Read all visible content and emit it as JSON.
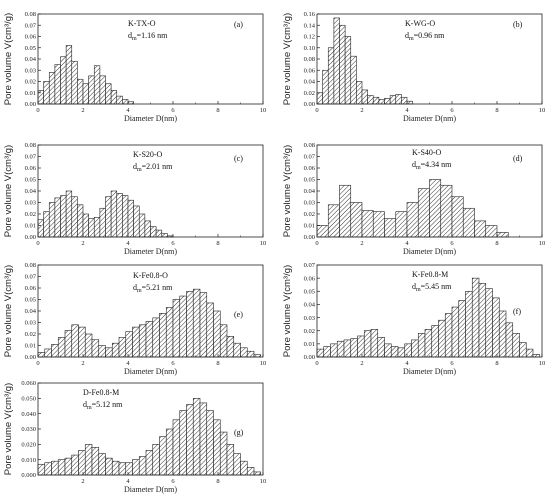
{
  "figure": {
    "common_xlabel": "Diameter D(nm)",
    "common_ylabel": "Pore volume V(cm³/g)"
  },
  "chart_data": [
    {
      "type": "bar",
      "id": "a",
      "panel_label": "(a)",
      "sample": "K-TX-O",
      "dm_label": "d",
      "dm_sub": "m",
      "dm_value": "=1.16 nm",
      "xlabel": "Diameter D(nm)",
      "ylabel": "Pore volume V(cm³/g)",
      "xlim": [
        0,
        10
      ],
      "ylim": [
        0,
        0.08
      ],
      "xticks": [
        0,
        2,
        4,
        6,
        8,
        10
      ],
      "yticks": [
        "0.00",
        "0.01",
        "0.02",
        "0.03",
        "0.04",
        "0.05",
        "0.06",
        "0.07",
        "0.08"
      ],
      "bin_width": 0.25,
      "x": [
        0.125,
        0.375,
        0.625,
        0.875,
        1.125,
        1.375,
        1.625,
        1.875,
        2.125,
        2.375,
        2.625,
        2.875,
        3.125,
        3.375,
        3.625,
        3.875,
        4.125
      ],
      "values": [
        0.012,
        0.02,
        0.028,
        0.035,
        0.042,
        0.052,
        0.038,
        0.022,
        0.018,
        0.025,
        0.034,
        0.025,
        0.018,
        0.012,
        0.007,
        0.004,
        0.002
      ]
    },
    {
      "type": "bar",
      "id": "b",
      "panel_label": "(b)",
      "sample": "K-WG-O",
      "dm_label": "d",
      "dm_sub": "m",
      "dm_value": "=0.96 nm",
      "xlabel": "Diameter D(nm)",
      "ylabel": "Pore volume V(cm³/g)",
      "xlim": [
        0,
        10
      ],
      "ylim": [
        0,
        0.16
      ],
      "xticks": [
        0,
        2,
        4,
        6,
        8,
        10
      ],
      "yticks": [
        "0.00",
        "0.02",
        "0.04",
        "0.06",
        "0.08",
        "0.10",
        "0.12",
        "0.14",
        "0.16"
      ],
      "bin_width": 0.25,
      "x": [
        0.125,
        0.375,
        0.625,
        0.875,
        1.125,
        1.375,
        1.625,
        1.875,
        2.125,
        2.375,
        2.625,
        2.875,
        3.125,
        3.375,
        3.625,
        3.875,
        4.125
      ],
      "values": [
        0.02,
        0.06,
        0.1,
        0.153,
        0.14,
        0.12,
        0.085,
        0.04,
        0.025,
        0.015,
        0.012,
        0.008,
        0.01,
        0.015,
        0.017,
        0.012,
        0.005
      ]
    },
    {
      "type": "bar",
      "id": "c",
      "panel_label": "(c)",
      "sample": "K-S20-O",
      "dm_label": "d",
      "dm_sub": "m",
      "dm_value": "=2.01 nm",
      "xlabel": "Diameter D(nm)",
      "ylabel": "Pore volume V(cm³/g)",
      "xlim": [
        0,
        10
      ],
      "ylim": [
        0,
        0.08
      ],
      "xticks": [
        0,
        2,
        4,
        6,
        8,
        10
      ],
      "yticks": [
        "0.00",
        "0.01",
        "0.02",
        "0.03",
        "0.04",
        "0.05",
        "0.06",
        "0.07",
        "0.08"
      ],
      "bin_width": 0.25,
      "x": [
        0.125,
        0.375,
        0.625,
        0.875,
        1.125,
        1.375,
        1.625,
        1.875,
        2.125,
        2.375,
        2.625,
        2.875,
        3.125,
        3.375,
        3.625,
        3.875,
        4.125,
        4.375,
        4.625,
        4.875,
        5.125,
        5.375,
        5.625,
        5.875
      ],
      "values": [
        0.015,
        0.022,
        0.03,
        0.034,
        0.036,
        0.04,
        0.035,
        0.028,
        0.02,
        0.016,
        0.017,
        0.025,
        0.035,
        0.04,
        0.038,
        0.036,
        0.032,
        0.027,
        0.02,
        0.014,
        0.009,
        0.006,
        0.003,
        0.001
      ]
    },
    {
      "type": "bar",
      "id": "d",
      "panel_label": "(d)",
      "sample": "K-S40-O",
      "dm_label": "d",
      "dm_sub": "m",
      "dm_value": "=4.34 nm",
      "xlabel": "Diameter D(nm)",
      "ylabel": "Pore volume V(cm³/g)",
      "xlim": [
        0,
        10
      ],
      "ylim": [
        0,
        0.08
      ],
      "xticks": [
        0,
        2,
        4,
        6,
        8,
        10
      ],
      "yticks": [
        "0.00",
        "0.01",
        "0.02",
        "0.03",
        "0.04",
        "0.05",
        "0.06",
        "0.07",
        "0.08"
      ],
      "bin_width": 0.5,
      "x": [
        0.25,
        0.75,
        1.25,
        1.75,
        2.25,
        2.75,
        3.25,
        3.75,
        4.25,
        4.75,
        5.25,
        5.75,
        6.25,
        6.75,
        7.25,
        7.75,
        8.25
      ],
      "values": [
        0.01,
        0.028,
        0.045,
        0.03,
        0.023,
        0.022,
        0.016,
        0.022,
        0.03,
        0.042,
        0.05,
        0.045,
        0.035,
        0.025,
        0.014,
        0.01,
        0.004
      ]
    },
    {
      "type": "bar",
      "id": "e",
      "panel_label": "(e)",
      "sample": "K-Fe0.8-O",
      "dm_label": "d",
      "dm_sub": "m",
      "dm_value": "=5.21 nm",
      "xlabel": "Diameter D(nm)",
      "ylabel": "Pore volume V(cm³/g)",
      "xlim": [
        0,
        10
      ],
      "ylim": [
        0,
        0.08
      ],
      "xticks": [
        0,
        2,
        4,
        6,
        8,
        10
      ],
      "yticks": [
        "0.00",
        "0.01",
        "0.02",
        "0.03",
        "0.04",
        "0.05",
        "0.06",
        "0.07",
        "0.08"
      ],
      "bin_width": 0.3,
      "x": [
        0.15,
        0.45,
        0.75,
        1.05,
        1.35,
        1.65,
        1.95,
        2.25,
        2.55,
        2.85,
        3.15,
        3.45,
        3.75,
        4.05,
        4.35,
        4.65,
        4.95,
        5.25,
        5.55,
        5.85,
        6.15,
        6.45,
        6.75,
        7.05,
        7.35,
        7.65,
        7.95,
        8.25,
        8.55,
        8.85,
        9.15,
        9.45,
        9.75
      ],
      "values": [
        0.004,
        0.007,
        0.011,
        0.017,
        0.023,
        0.028,
        0.026,
        0.02,
        0.015,
        0.01,
        0.008,
        0.012,
        0.017,
        0.022,
        0.026,
        0.028,
        0.031,
        0.034,
        0.038,
        0.043,
        0.05,
        0.053,
        0.057,
        0.059,
        0.056,
        0.047,
        0.04,
        0.028,
        0.018,
        0.012,
        0.008,
        0.005,
        0.002
      ]
    },
    {
      "type": "bar",
      "id": "f",
      "panel_label": "(f)",
      "sample": "K-Fe0.8-M",
      "dm_label": "d",
      "dm_sub": "m",
      "dm_value": "=5.45 nm",
      "xlabel": "Diameter D(nm)",
      "ylabel": "Pore volume V(cm³/g)",
      "xlim": [
        0,
        10
      ],
      "ylim": [
        0,
        0.07
      ],
      "xticks": [
        0,
        2,
        4,
        6,
        8,
        10
      ],
      "yticks": [
        "0.00",
        "0.01",
        "0.02",
        "0.03",
        "0.04",
        "0.05",
        "0.06",
        "0.07"
      ],
      "bin_width": 0.3,
      "x": [
        0.15,
        0.45,
        0.75,
        1.05,
        1.35,
        1.65,
        1.95,
        2.25,
        2.55,
        2.85,
        3.15,
        3.45,
        3.75,
        4.05,
        4.35,
        4.65,
        4.95,
        5.25,
        5.55,
        5.85,
        6.15,
        6.45,
        6.75,
        7.05,
        7.35,
        7.65,
        7.95,
        8.25,
        8.55,
        8.85,
        9.15,
        9.45,
        9.75
      ],
      "values": [
        0.006,
        0.008,
        0.01,
        0.012,
        0.013,
        0.014,
        0.016,
        0.02,
        0.021,
        0.015,
        0.01,
        0.008,
        0.007,
        0.01,
        0.013,
        0.018,
        0.021,
        0.024,
        0.028,
        0.033,
        0.038,
        0.043,
        0.05,
        0.06,
        0.056,
        0.052,
        0.045,
        0.035,
        0.026,
        0.018,
        0.011,
        0.006,
        0.002
      ]
    },
    {
      "type": "bar",
      "id": "g",
      "panel_label": "(g)",
      "sample": "D-Fe0.8-M",
      "dm_label": "d",
      "dm_sub": "m",
      "dm_value": "=5.12 nm",
      "xlabel": "Diameter D(nm)",
      "ylabel": "Pore volume V(cm³/g)",
      "xlim": [
        0,
        10
      ],
      "ylim": [
        0,
        0.06
      ],
      "xticks": [
        2,
        4,
        6,
        8,
        10
      ],
      "yticks": [
        "0.000",
        "0.010",
        "0.020",
        "0.030",
        "0.040",
        "0.050",
        "0.060"
      ],
      "bin_width": 0.3,
      "x": [
        0.15,
        0.45,
        0.75,
        1.05,
        1.35,
        1.65,
        1.95,
        2.25,
        2.55,
        2.85,
        3.15,
        3.45,
        3.75,
        4.05,
        4.35,
        4.65,
        4.95,
        5.25,
        5.55,
        5.85,
        6.15,
        6.45,
        6.75,
        7.05,
        7.35,
        7.65,
        7.95,
        8.25,
        8.55,
        8.85,
        9.15,
        9.45,
        9.75
      ],
      "values": [
        0.007,
        0.008,
        0.009,
        0.01,
        0.011,
        0.013,
        0.016,
        0.02,
        0.018,
        0.014,
        0.011,
        0.009,
        0.008,
        0.008,
        0.01,
        0.012,
        0.016,
        0.02,
        0.025,
        0.03,
        0.036,
        0.042,
        0.046,
        0.05,
        0.047,
        0.042,
        0.036,
        0.028,
        0.02,
        0.014,
        0.009,
        0.005,
        0.002
      ]
    }
  ]
}
